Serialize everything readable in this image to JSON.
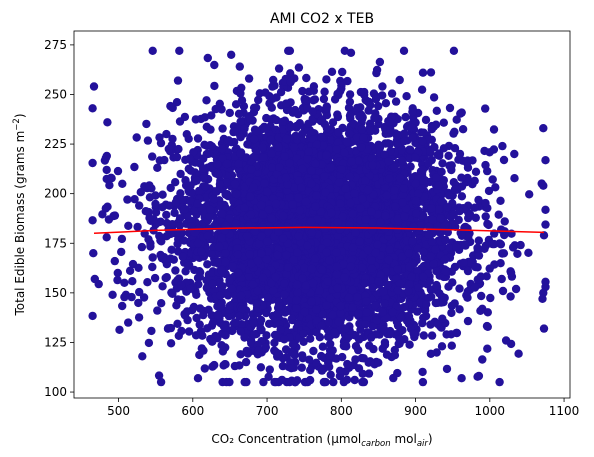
{
  "chart_data": {
    "type": "scatter",
    "title": "AMI CO2 x TEB",
    "xlabel": "CO₂ Concentration (µmol",
    "xlabel_sub1": "carbon",
    "xlabel_mid": " mol",
    "xlabel_sub2": "air",
    "xlabel_end": ")",
    "ylabel": "Total Edible Biomass (grams m",
    "ylabel_sup": "−2",
    "ylabel_end": ")",
    "xlim": [
      440,
      1108
    ],
    "ylim": [
      97,
      282
    ],
    "xticks": [
      500,
      600,
      700,
      800,
      900,
      1000,
      1100
    ],
    "yticks": [
      100,
      125,
      150,
      175,
      200,
      225,
      250,
      275
    ],
    "marker_color": "#23119b",
    "fit_color": "#ff0000",
    "scatter_summary": {
      "count": 6000,
      "x_mean": 770,
      "x_std": 95,
      "x_range": [
        465,
        1075
      ],
      "y_mean": 182,
      "y_std": 29,
      "y_range": [
        105,
        272
      ]
    },
    "outliers": [
      {
        "x": 467,
        "y": 254
      },
      {
        "x": 466,
        "y": 170
      },
      {
        "x": 468,
        "y": 157
      },
      {
        "x": 485,
        "y": 236
      },
      {
        "x": 483,
        "y": 218
      },
      {
        "x": 484,
        "y": 212
      },
      {
        "x": 490,
        "y": 208
      },
      {
        "x": 487,
        "y": 187
      },
      {
        "x": 484,
        "y": 178
      },
      {
        "x": 492,
        "y": 149
      },
      {
        "x": 505,
        "y": 205
      },
      {
        "x": 513,
        "y": 135
      },
      {
        "x": 532,
        "y": 118
      },
      {
        "x": 580,
        "y": 257
      },
      {
        "x": 607,
        "y": 107
      },
      {
        "x": 758,
        "y": 106
      },
      {
        "x": 813,
        "y": 271
      },
      {
        "x": 962,
        "y": 107
      },
      {
        "x": 1017,
        "y": 224
      },
      {
        "x": 1033,
        "y": 220
      },
      {
        "x": 1072,
        "y": 233
      },
      {
        "x": 1072,
        "y": 204
      },
      {
        "x": 1073,
        "y": 179
      },
      {
        "x": 1072,
        "y": 150
      },
      {
        "x": 1071,
        "y": 147
      },
      {
        "x": 1022,
        "y": 126
      },
      {
        "x": 1020,
        "y": 186
      },
      {
        "x": 1016,
        "y": 157
      },
      {
        "x": 495,
        "y": 166
      },
      {
        "x": 499,
        "y": 160
      }
    ],
    "fit_line": {
      "x": [
        467,
        550,
        650,
        750,
        850,
        950,
        1073
      ],
      "y": [
        180.0,
        181.5,
        182.6,
        183.0,
        182.7,
        181.8,
        180.5
      ]
    }
  }
}
